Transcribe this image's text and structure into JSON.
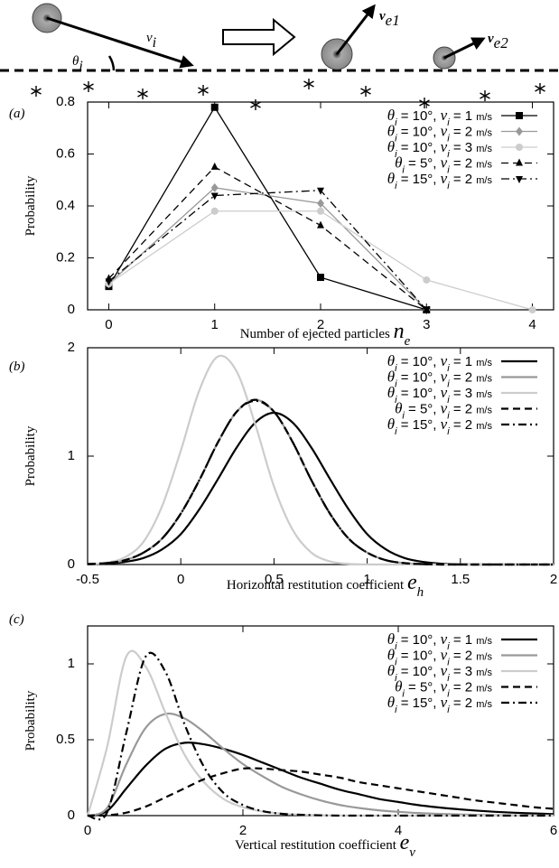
{
  "diagram": {
    "labels": [
      {
        "base": "v",
        "sub": "i"
      },
      {
        "base": "θ",
        "sub": "i"
      },
      {
        "base": "v",
        "sub": "e1"
      },
      {
        "base": "v",
        "sub": "e2"
      }
    ]
  },
  "chart_data": [
    {
      "type": "line",
      "label": "(a)",
      "ylabel": "Probability",
      "xlabel": "Number of ejected particles",
      "xlabel_math": {
        "base": "n",
        "sub": "e"
      },
      "x": [
        0,
        1,
        2,
        3,
        4
      ],
      "xlim": [
        -0.2,
        4.2
      ],
      "xticks": [
        0,
        1,
        2,
        3,
        4
      ],
      "ylim": [
        0,
        0.8
      ],
      "yticks": [
        0,
        0.2,
        0.4,
        0.6,
        0.8
      ],
      "smooth": false,
      "legend": "upper right",
      "series": [
        {
          "name": "θi = 10°, vi = 1 m/s",
          "color": "#000000",
          "dash": "solid",
          "marker": "square",
          "values": [
            0.09,
            0.78,
            0.125,
            0,
            null
          ]
        },
        {
          "name": "θi = 10°, vi = 2 m/s",
          "color": "#999999",
          "dash": "solid",
          "marker": "diamond",
          "values": [
            0.1,
            0.47,
            0.41,
            0,
            null
          ]
        },
        {
          "name": "θi = 10°, vi = 3 m/s",
          "color": "#cccccc",
          "dash": "solid",
          "marker": "circle",
          "values": [
            0.1,
            0.38,
            0.38,
            0.115,
            0
          ]
        },
        {
          "name": "θi = 5°, vi = 2 m/s",
          "color": "#000000",
          "dash": "dashed",
          "marker": "triangle",
          "values": [
            0.12,
            0.55,
            0.325,
            0,
            null
          ]
        },
        {
          "name": "θi = 15°, vi = 2 m/s",
          "color": "#000000",
          "dash": "dashdot",
          "marker": "triangle-down",
          "values": [
            0.11,
            0.44,
            0.46,
            0,
            null
          ]
        }
      ]
    },
    {
      "type": "line",
      "label": "(b)",
      "ylabel": "Probability",
      "xlabel": "Horizontal restitution coefficient",
      "xlabel_math": {
        "base": "e",
        "sub": "h"
      },
      "x": [
        -0.5,
        -0.4,
        -0.3,
        -0.2,
        -0.1,
        0,
        0.1,
        0.2,
        0.3,
        0.4,
        0.5,
        0.6,
        0.7,
        0.8,
        0.9,
        1.0,
        1.1,
        1.2,
        1.3,
        1.4,
        1.5,
        1.6,
        1.7,
        1.8,
        1.9,
        2.0
      ],
      "xlim": [
        -0.5,
        2
      ],
      "xticks": [
        -0.5,
        0,
        0.5,
        1,
        1.5,
        2
      ],
      "ylim": [
        0,
        2
      ],
      "yticks": [
        0,
        1,
        2
      ],
      "smooth": true,
      "legend": "upper right",
      "series": [
        {
          "name": "θi = 10°, vi = 1 m/s",
          "color": "#000000",
          "dash": "solid",
          "values": [
            0.002,
            0.008,
            0.024,
            0.06,
            0.14,
            0.28,
            0.51,
            0.79,
            1.08,
            1.31,
            1.4,
            1.31,
            1.08,
            0.79,
            0.51,
            0.28,
            0.14,
            0.06,
            0.024,
            0.008,
            0.002,
            0,
            0,
            0,
            0,
            0
          ]
        },
        {
          "name": "θi = 10°, vi = 2 m/s",
          "color": "#999999",
          "dash": "solid",
          "values": [
            0.004,
            0.013,
            0.04,
            0.11,
            0.24,
            0.47,
            0.78,
            1.13,
            1.41,
            1.52,
            1.41,
            1.13,
            0.78,
            0.47,
            0.24,
            0.11,
            0.04,
            0.013,
            0.004,
            0,
            0,
            0,
            0,
            0,
            0,
            0
          ]
        },
        {
          "name": "θi = 10°, vi = 3 m/s",
          "color": "#cccccc",
          "dash": "solid",
          "values": [
            0.003,
            0.016,
            0.066,
            0.21,
            0.54,
            1.05,
            1.61,
            1.92,
            1.78,
            1.29,
            0.72,
            0.32,
            0.11,
            0.029,
            0.006,
            0.001,
            0,
            0,
            0,
            0,
            0,
            0,
            0,
            0,
            0,
            0
          ]
        },
        {
          "name": "θi = 5°, vi = 2 m/s",
          "color": "#000000",
          "dash": "dashed",
          "values": [
            0.004,
            0.013,
            0.04,
            0.11,
            0.24,
            0.47,
            0.78,
            1.13,
            1.41,
            1.52,
            1.41,
            1.13,
            0.78,
            0.47,
            0.24,
            0.11,
            0.04,
            0.013,
            0.004,
            0,
            0,
            0,
            0,
            0,
            0,
            0
          ]
        },
        {
          "name": "θi = 15°, vi = 2 m/s",
          "color": "#000000",
          "dash": "dashdot",
          "values": [
            0.004,
            0.013,
            0.04,
            0.11,
            0.24,
            0.47,
            0.78,
            1.13,
            1.41,
            1.51,
            1.41,
            1.13,
            0.78,
            0.47,
            0.24,
            0.11,
            0.04,
            0.013,
            0.004,
            0,
            0,
            0,
            0,
            0,
            0,
            0
          ]
        }
      ]
    },
    {
      "type": "line",
      "label": "(c)",
      "ylabel": "Probability",
      "xlabel": "Vertical restitution coefficient",
      "xlabel_math": {
        "base": "e",
        "sub": "v"
      },
      "x": [
        0,
        0.25,
        0.5,
        0.75,
        1,
        1.25,
        1.5,
        1.75,
        2,
        2.25,
        2.5,
        2.75,
        3,
        3.25,
        3.5,
        3.75,
        4,
        4.25,
        4.5,
        4.75,
        5,
        5.25,
        5.5,
        5.75,
        6
      ],
      "xlim": [
        0,
        6
      ],
      "xticks": [
        0,
        2,
        4,
        6
      ],
      "ylim": [
        0,
        1.25
      ],
      "yticks": [
        0,
        0.5,
        1
      ],
      "smooth": true,
      "legend": "upper right",
      "series": [
        {
          "name": "θi = 10°, vi = 1 m/s",
          "color": "#000000",
          "dash": "solid",
          "values": [
            0,
            0.03,
            0.18,
            0.33,
            0.44,
            0.48,
            0.47,
            0.44,
            0.4,
            0.35,
            0.3,
            0.25,
            0.21,
            0.17,
            0.14,
            0.11,
            0.09,
            0.07,
            0.055,
            0.043,
            0.033,
            0.025,
            0.019,
            0.014,
            0.01
          ]
        },
        {
          "name": "θi = 10°, vi = 2 m/s",
          "color": "#999999",
          "dash": "solid",
          "values": [
            0,
            0.05,
            0.34,
            0.58,
            0.67,
            0.64,
            0.55,
            0.44,
            0.34,
            0.26,
            0.19,
            0.14,
            0.1,
            0.07,
            0.05,
            0.035,
            0.025,
            0.017,
            0.012,
            0.008,
            0.005,
            0.003,
            0.002,
            0.001,
            0.001
          ]
        },
        {
          "name": "θi = 10°, vi = 3 m/s",
          "color": "#cccccc",
          "dash": "solid",
          "values": [
            0,
            0.45,
            1.05,
            0.98,
            0.68,
            0.4,
            0.22,
            0.11,
            0.055,
            0.027,
            0.013,
            0.006,
            0.003,
            0,
            0,
            0,
            0,
            0,
            0,
            0,
            0,
            0,
            0,
            0,
            0
          ]
        },
        {
          "name": "θi = 5°, vi = 2 m/s",
          "color": "#000000",
          "dash": "dashed",
          "values": [
            0,
            0.002,
            0.02,
            0.06,
            0.12,
            0.18,
            0.24,
            0.28,
            0.31,
            0.31,
            0.3,
            0.29,
            0.27,
            0.25,
            0.22,
            0.2,
            0.18,
            0.16,
            0.14,
            0.12,
            0.1,
            0.085,
            0.07,
            0.055,
            0.045
          ]
        },
        {
          "name": "θi = 15°, vi = 2 m/s",
          "color": "#000000",
          "dash": "dashdot",
          "values": [
            0,
            0.02,
            0.55,
            1.05,
            0.95,
            0.6,
            0.32,
            0.15,
            0.07,
            0.03,
            0.012,
            0.005,
            0.002,
            0,
            0,
            0,
            0,
            0,
            0,
            0,
            0,
            0,
            0,
            0,
            0
          ]
        }
      ]
    }
  ]
}
